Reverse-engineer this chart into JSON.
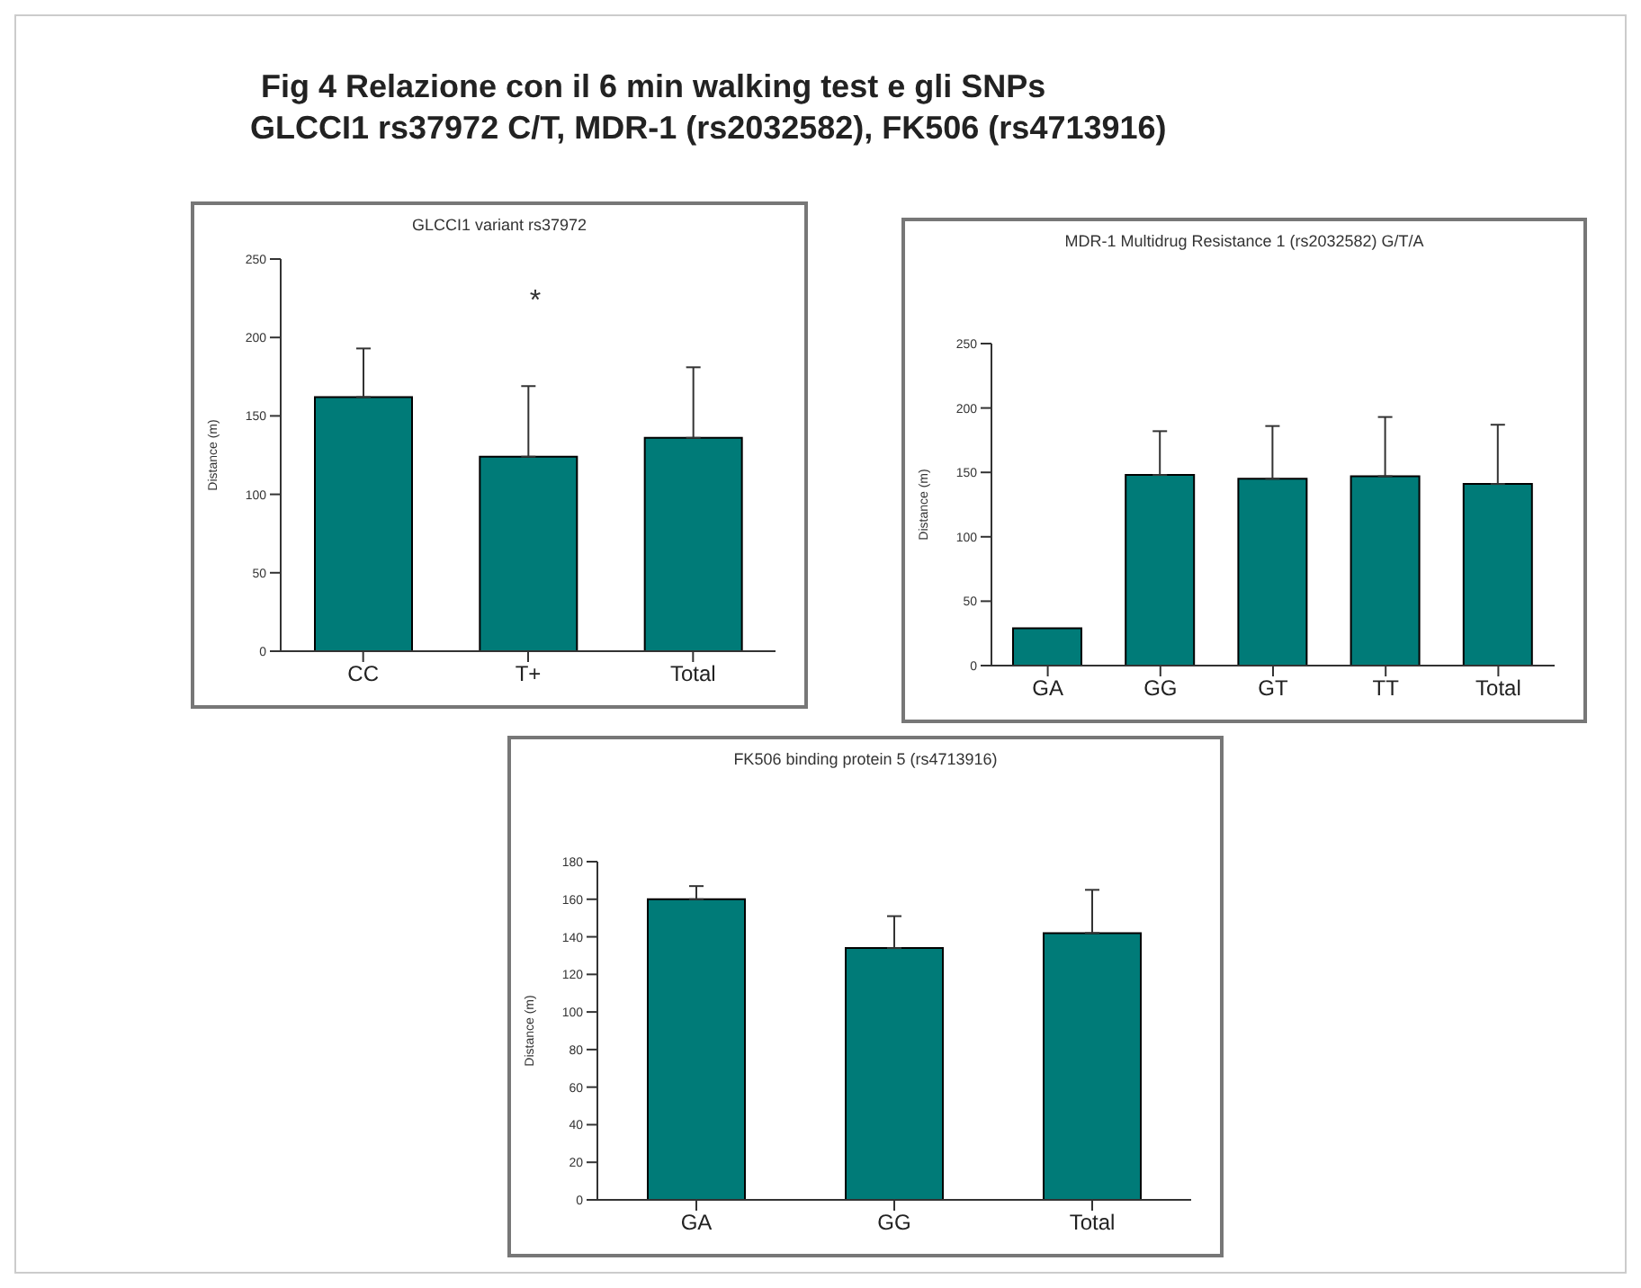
{
  "chart_data": [
    {
      "type": "bar",
      "title": "GLCCI1 variant rs37972",
      "ylabel": "Distance (m)",
      "categories": [
        "CC",
        "T+",
        "Total"
      ],
      "color": "#007b78",
      "values": [
        162,
        124,
        136
      ],
      "errors": [
        [
          162,
          193
        ],
        [
          124,
          169
        ],
        [
          136,
          181
        ]
      ],
      "ylim": [
        0,
        250
      ],
      "yticks": [
        0,
        50,
        100,
        150,
        200,
        250
      ],
      "grid": false,
      "legend": false,
      "annotations": [
        "Fig 4 Relazione con il 6 min walking test e gli SNPs",
        "GLCCI1 rs37972 C/T, MDR-1 (rs2032582), FK506 (rs4713916)",
        "*"
      ]
    },
    {
      "type": "bar",
      "title": "MDR-1 Multidrug Resistance 1 (rs2032582) G/T/A",
      "ylabel": "Distance (m)",
      "categories": [
        "GA",
        "GG",
        "GT",
        "TT",
        "Total"
      ],
      "color": "#007b78",
      "values": [
        29,
        148,
        145,
        147,
        141
      ],
      "errors": [
        null,
        [
          148,
          182
        ],
        [
          145,
          186
        ],
        [
          147,
          193
        ],
        [
          141,
          187
        ]
      ],
      "ylim": [
        0,
        250
      ],
      "yticks": [
        0,
        50,
        100,
        150,
        200,
        250
      ],
      "grid": false,
      "legend": false
    },
    {
      "type": "bar",
      "title": "FK506 binding protein 5 (rs4713916)",
      "ylabel": "Distance (m)",
      "categories": [
        "GA",
        "GG",
        "Total"
      ],
      "color": "#007b78",
      "values": [
        160,
        134,
        142
      ],
      "errors": [
        [
          160,
          167
        ],
        [
          134,
          151
        ],
        [
          142,
          165
        ]
      ],
      "ylim": [
        0,
        180
      ],
      "yticks": [
        0,
        20,
        40,
        60,
        80,
        100,
        120,
        140,
        160,
        180
      ],
      "grid": false,
      "legend": false
    }
  ]
}
